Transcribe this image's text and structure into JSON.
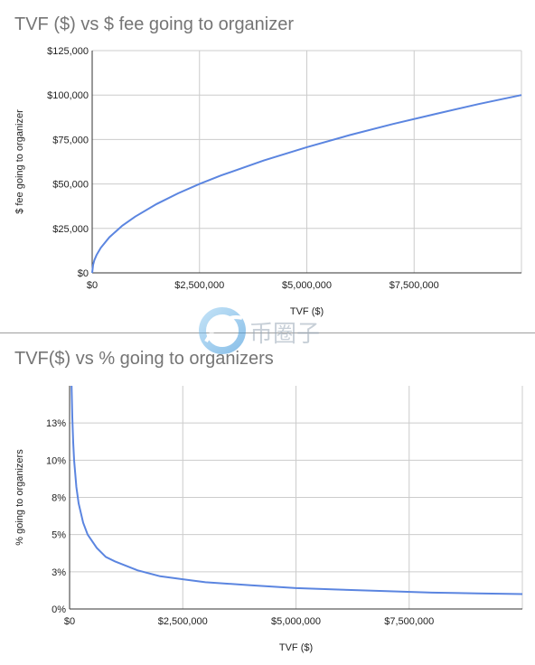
{
  "chart_data": [
    {
      "type": "line",
      "title": "TVF ($) vs $ fee going to organizer",
      "xlabel": "TVF ($)",
      "ylabel": "$ fee going to organizer",
      "xlim": [
        0,
        10000000
      ],
      "ylim": [
        0,
        125000
      ],
      "x_ticks": [
        "$0",
        "$2,500,000",
        "$5,000,000",
        "$7,500,000"
      ],
      "y_ticks": [
        "$0",
        "$25,000",
        "$50,000",
        "$75,000",
        "$100,000",
        "$125,000"
      ],
      "grid": true,
      "color": "#5b85e0",
      "series": [
        {
          "x": [
            0,
            20000,
            50000,
            100000,
            200000,
            400000,
            700000,
            1000000,
            1500000,
            2000000,
            2500000,
            3000000,
            4000000,
            5000000,
            6000000,
            7000000,
            8000000,
            9000000,
            10000000
          ],
          "values": [
            0,
            4500,
            7100,
            10000,
            14100,
            20000,
            26500,
            31600,
            38700,
            44700,
            50000,
            54800,
            63200,
            70700,
            77500,
            83700,
            89400,
            94900,
            100000
          ]
        }
      ]
    },
    {
      "type": "line",
      "title": "TVF($) vs % going to organizers",
      "xlabel": "TVF ($)",
      "ylabel": "% going to organizers",
      "xlim": [
        0,
        10000000
      ],
      "ylim": [
        0,
        15
      ],
      "x_ticks": [
        "$0",
        "$2,500,000",
        "$5,000,000",
        "$7,500,000"
      ],
      "y_ticks": [
        "0%",
        "3%",
        "5%",
        "8%",
        "10%",
        "13%"
      ],
      "y_tick_values": [
        0,
        2.5,
        5,
        7.5,
        10,
        12.5
      ],
      "grid": true,
      "color": "#5b85e0",
      "series": [
        {
          "x": [
            44000,
            60000,
            80000,
            100000,
            150000,
            200000,
            300000,
            400000,
            600000,
            800000,
            1000000,
            1500000,
            2000000,
            2500000,
            3000000,
            4000000,
            5000000,
            6000000,
            7000000,
            8000000,
            9000000,
            10000000
          ],
          "values": [
            15.0,
            12.9,
            11.2,
            10.0,
            8.2,
            7.1,
            5.8,
            5.0,
            4.1,
            3.5,
            3.2,
            2.6,
            2.2,
            2.0,
            1.8,
            1.6,
            1.4,
            1.3,
            1.2,
            1.1,
            1.05,
            1.0
          ]
        }
      ]
    }
  ],
  "watermark": {
    "text": "币圈子"
  }
}
